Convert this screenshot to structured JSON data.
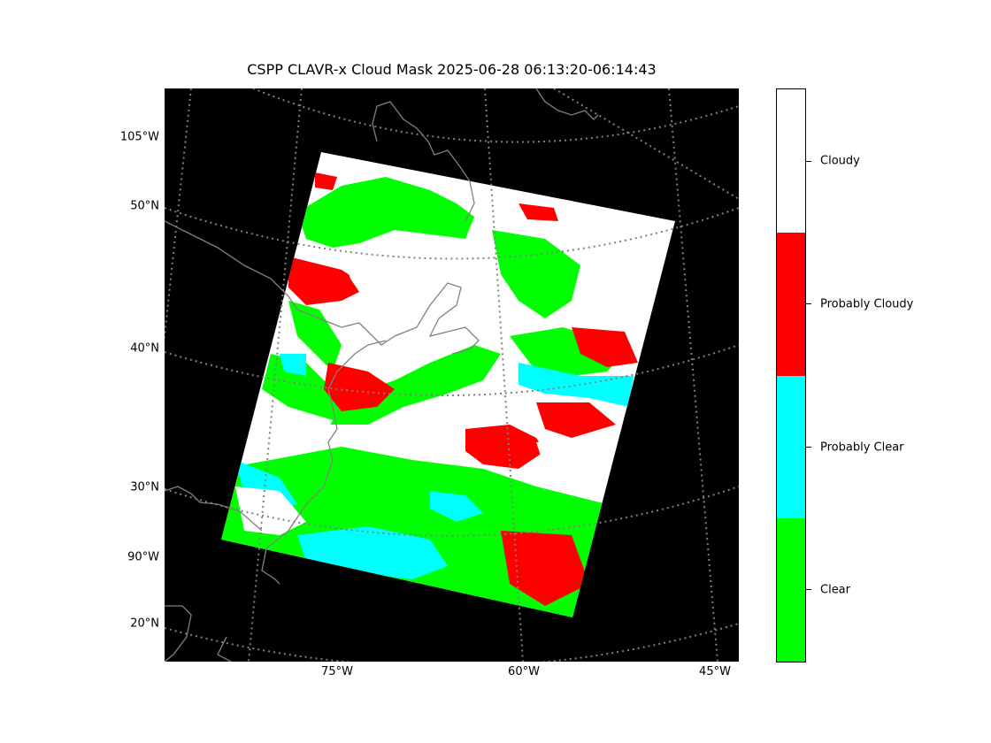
{
  "figure": {
    "title": "CSPP CLAVR-x Cloud Mask 2025-06-28 06:13:20-06:14:43"
  },
  "map": {
    "background_color": "#000000",
    "coastline_color": "#808080",
    "gridline_color": "#808080",
    "gridline_style": "dotted",
    "lat_labels": [
      "105°W",
      "50°N",
      "40°N",
      "30°N",
      "90°W",
      "20°N"
    ],
    "lon_labels": [
      "75°W",
      "60°W",
      "45°W"
    ]
  },
  "colorbar": {
    "categories": [
      {
        "label": "Cloudy",
        "color": "#ffffff"
      },
      {
        "label": "Probably Cloudy",
        "color": "#ff0000"
      },
      {
        "label": "Probably Clear",
        "color": "#00ffff"
      },
      {
        "label": "Clear",
        "color": "#00ff00"
      }
    ]
  }
}
